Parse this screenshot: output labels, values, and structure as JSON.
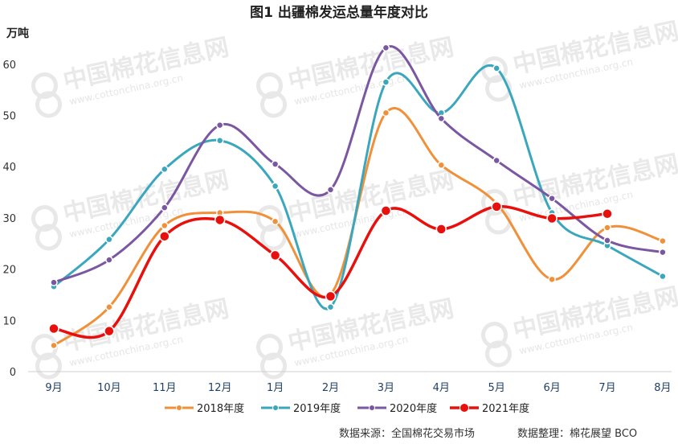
{
  "chart_data": {
    "type": "line",
    "title": "图1  出疆棉发运总量年度对比",
    "ylabel": "万吨",
    "xlabel": "",
    "categories": [
      "9月",
      "10月",
      "11月",
      "12月",
      "1月",
      "2月",
      "3月",
      "4月",
      "5月",
      "6月",
      "7月",
      "8月"
    ],
    "ylim": [
      0,
      65
    ],
    "yticks": [
      0,
      10,
      20,
      30,
      40,
      50,
      60
    ],
    "grid": false,
    "legend_position": "bottom",
    "series": [
      {
        "name": "2018年度",
        "color": "#f0913a",
        "marker_size": 4,
        "values": [
          5.1,
          12.6,
          28.5,
          31.0,
          29.3,
          15.1,
          50.5,
          40.3,
          32.8,
          18.0,
          28.1,
          25.5
        ]
      },
      {
        "name": "2019年度",
        "color": "#3ba7bd",
        "marker_size": 4,
        "values": [
          16.6,
          25.8,
          39.5,
          45.1,
          36.2,
          12.6,
          56.5,
          50.5,
          59.2,
          31.0,
          24.6,
          18.6
        ]
      },
      {
        "name": "2020年度",
        "color": "#7a57a0",
        "marker_size": 4,
        "values": [
          17.4,
          21.8,
          32.0,
          48.1,
          40.5,
          35.5,
          63.2,
          49.4,
          41.2,
          33.8,
          25.6,
          23.3
        ]
      },
      {
        "name": "2021年度",
        "color": "#e8100c",
        "marker_size": 6,
        "values": [
          8.4,
          7.9,
          26.4,
          29.6,
          22.7,
          14.7,
          31.4,
          27.8,
          32.2,
          29.9,
          30.8,
          null
        ]
      }
    ],
    "source_left": "数据来源：全国棉花交易市场",
    "source_right": "数据整理：棉花展望 BCO"
  },
  "watermark": {
    "cn": "中国棉花信息网",
    "en": "www.cottonchina.org.cn"
  }
}
